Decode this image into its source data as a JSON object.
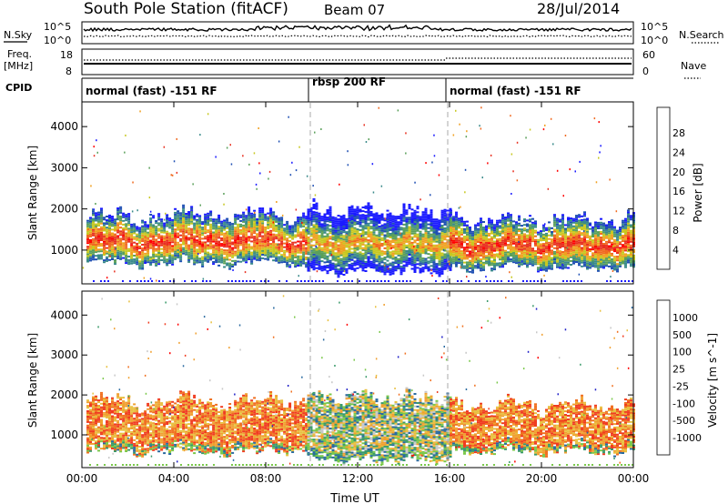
{
  "header": {
    "station": "South Pole Station (fitACF)",
    "beam": "Beam 07",
    "date": "28/Jul/2014"
  },
  "side_labels": {
    "nsky": "N.Sky",
    "freq_line1": "Freq.",
    "freq_line2": "[MHz]",
    "cpid": "CPID",
    "nsearch": "N.Search",
    "nave": "Nave"
  },
  "noise_panel": {
    "left_ticks": [
      "10^5",
      "10^0"
    ],
    "right_ticks": [
      "10^5",
      "10^0"
    ]
  },
  "freq_panel": {
    "left_ticks": [
      "18",
      "8"
    ],
    "right_ticks": [
      "60",
      "0"
    ]
  },
  "cpid_segments": [
    {
      "label": "normal (fast) -151 RF",
      "start_hour": 0
    },
    {
      "label": "rbsp 200 RF",
      "start_hour": 10
    },
    {
      "label": "normal (fast) -151 RF",
      "start_hour": 16
    }
  ],
  "colors": {
    "power_scale": [
      "#1a1aff",
      "#1f4fb3",
      "#3a8a8a",
      "#5aa05a",
      "#c8c820",
      "#f0a020",
      "#f06a20",
      "#e83020",
      "#ff0000"
    ],
    "velocity_scale": [
      "#ff0000",
      "#f03c20",
      "#f07020",
      "#f0a030",
      "#e8c040",
      "#c8c8c8",
      "#7ac84a",
      "#3a9a6a",
      "#2a6aa0",
      "#2020c8"
    ]
  },
  "chart_data": [
    {
      "type": "heatmap",
      "panel": "power",
      "ylabel": "Slant Range [km]",
      "colorbar_label": "Power [dB]",
      "colorbar_ticks": [
        "4",
        "8",
        "12",
        "16",
        "20",
        "24",
        "28"
      ],
      "x_ticks": [
        "00:00",
        "04:00",
        "08:00",
        "12:00",
        "16:00",
        "20:00",
        "00:00"
      ],
      "y_ticks": [
        "1000",
        "2000",
        "3000",
        "4000"
      ],
      "xlim_hours": [
        0,
        24
      ],
      "ylim_km": [
        180,
        4600
      ],
      "dashed_lines_hours": [
        10,
        16
      ],
      "echo_bands": [
        {
          "start_hour": 0.2,
          "end_hour": 9.8,
          "range_km": [
            600,
            1900
          ]
        },
        {
          "start_hour": 9.8,
          "end_hour": 16.0,
          "range_km": [
            400,
            2000
          ]
        },
        {
          "start_hour": 16.0,
          "end_hour": 24.0,
          "range_km": [
            500,
            1800
          ]
        }
      ]
    },
    {
      "type": "heatmap",
      "panel": "velocity",
      "ylabel": "Slant Range [km]",
      "xlabel": "Time UT",
      "colorbar_label": "Velocity [m s^-1]",
      "colorbar_ticks": [
        "-1000",
        "-500",
        "-100",
        "-25",
        "25",
        "100",
        "500",
        "1000"
      ],
      "x_ticks": [
        "00:00",
        "04:00",
        "08:00",
        "12:00",
        "16:00",
        "20:00",
        "00:00"
      ],
      "y_ticks": [
        "1000",
        "2000",
        "3000",
        "4000"
      ],
      "xlim_hours": [
        0,
        24
      ],
      "ylim_km": [
        180,
        4600
      ],
      "dashed_lines_hours": [
        10,
        16
      ],
      "echo_bands": [
        {
          "start_hour": 0.2,
          "end_hour": 9.8,
          "range_km": [
            500,
            1900
          ]
        },
        {
          "start_hour": 9.8,
          "end_hour": 16.0,
          "range_km": [
            300,
            2000
          ]
        },
        {
          "start_hour": 16.0,
          "end_hour": 24.0,
          "range_km": [
            500,
            1800
          ]
        }
      ]
    }
  ]
}
